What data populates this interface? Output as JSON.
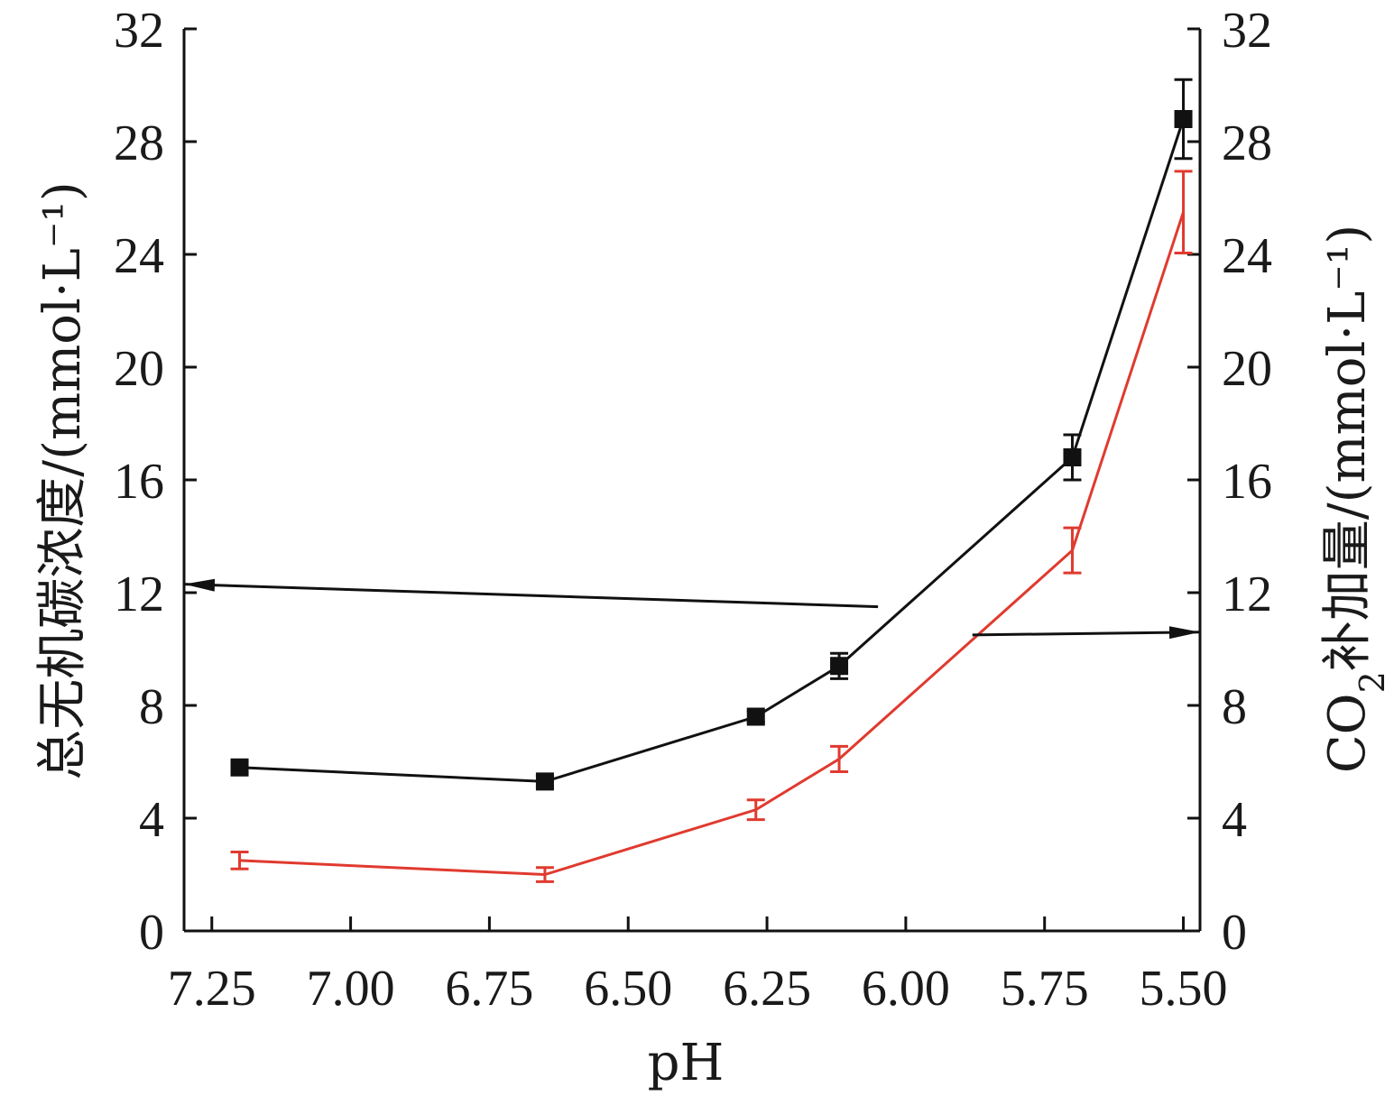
{
  "chart_data": {
    "type": "line",
    "xlabel": "pH",
    "ylabel_left": "总无机碳浓度/(mmol·L⁻¹)",
    "ylabel_right_main": "CO",
    "ylabel_right_sub": "2",
    "ylabel_right_rest": "补加量/(mmol·L⁻¹)",
    "xlim": [
      7.3,
      5.47
    ],
    "ylim": [
      0,
      32
    ],
    "x_reversed": true,
    "x_ticks": [
      7.25,
      7.0,
      6.75,
      6.5,
      6.25,
      6.0,
      5.75,
      5.5
    ],
    "x_tick_labels": [
      "7.25",
      "7.00",
      "6.75",
      "6.50",
      "6.25",
      "6.00",
      "5.75",
      "5.50"
    ],
    "y_ticks": [
      0,
      4,
      8,
      12,
      16,
      20,
      24,
      28,
      32
    ],
    "y_tick_labels": [
      "0",
      "4",
      "8",
      "12",
      "16",
      "20",
      "24",
      "28",
      "32"
    ],
    "grid": false,
    "series": [
      {
        "axis": "left",
        "color": "#111111",
        "marker": "square",
        "x": [
          7.2,
          6.65,
          6.27,
          6.12,
          5.7,
          5.5
        ],
        "y": [
          5.8,
          5.3,
          7.6,
          9.4,
          16.8,
          28.8
        ],
        "error": [
          0.2,
          0.2,
          0.2,
          0.45,
          0.8,
          1.4
        ]
      },
      {
        "axis": "right",
        "color": "#e03a2f",
        "marker": "none",
        "x": [
          7.2,
          6.65,
          6.27,
          6.12,
          5.7,
          5.5
        ],
        "y": [
          2.5,
          2.0,
          4.3,
          6.1,
          13.5,
          25.5
        ],
        "error": [
          0.3,
          0.25,
          0.35,
          0.45,
          0.8,
          1.45
        ]
      }
    ],
    "annotations": [
      {
        "type": "arrow",
        "points_to": "left-axis",
        "from": [
          6.05,
          11.5
        ],
        "to": [
          7.3,
          12.3
        ]
      },
      {
        "type": "arrow",
        "points_to": "right-axis",
        "from": [
          5.88,
          10.5
        ],
        "to": [
          5.47,
          10.6
        ]
      }
    ]
  }
}
